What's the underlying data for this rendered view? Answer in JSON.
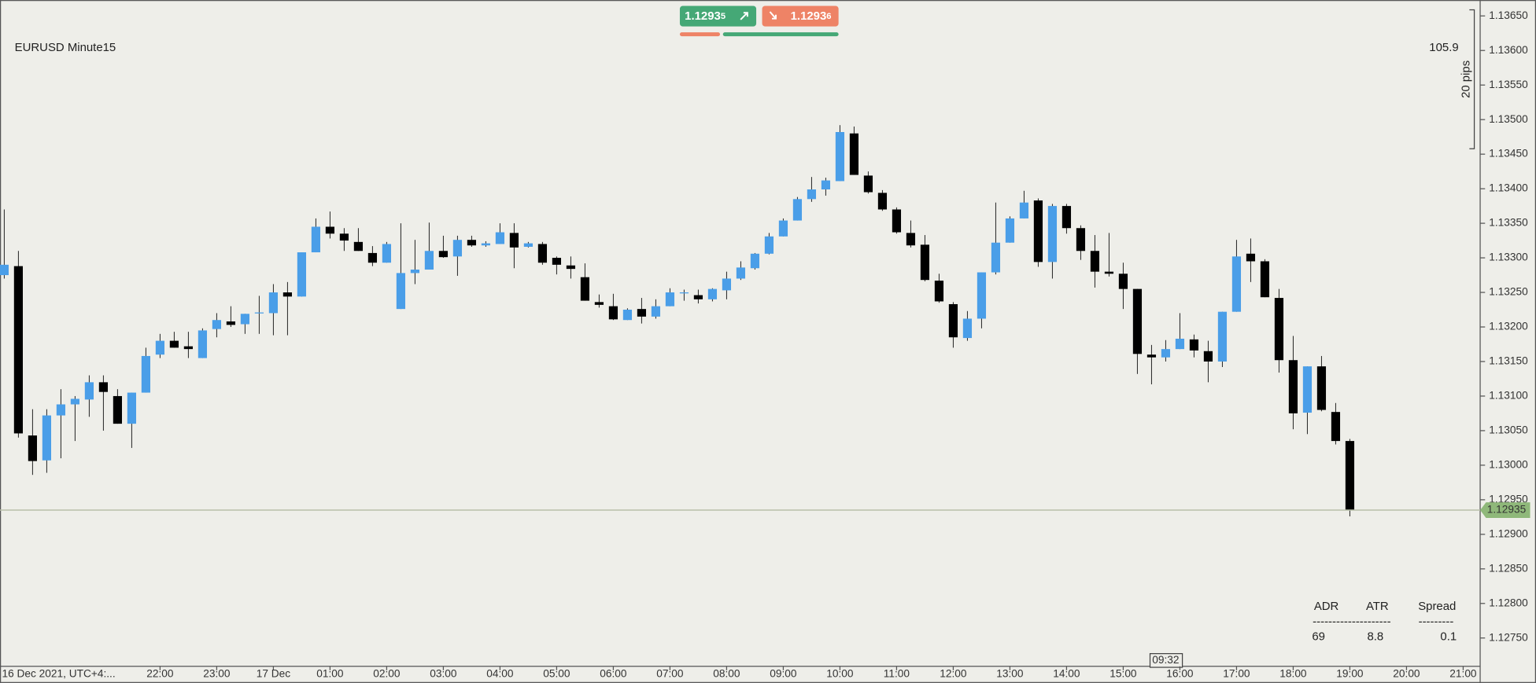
{
  "chart_data": {
    "type": "candlestick",
    "title": "EURUSD  Minute15",
    "up_color": "#4a9ee8",
    "down_color": "#000000",
    "x": [
      0,
      1,
      2,
      3,
      4,
      5,
      6,
      7,
      8,
      9,
      10,
      11,
      12,
      13,
      14,
      15,
      16,
      17,
      18,
      19,
      20,
      21,
      22,
      23,
      24,
      25,
      26,
      27,
      28,
      29,
      30,
      31,
      32,
      33,
      34,
      35,
      36,
      37,
      38,
      39,
      40,
      41,
      42,
      43,
      44,
      45,
      46,
      47,
      48,
      49,
      50,
      51,
      52,
      53,
      54,
      55,
      56,
      57,
      58,
      59,
      60,
      61,
      62,
      63,
      64,
      65,
      66,
      67,
      68,
      69,
      70,
      71,
      72,
      73,
      74,
      75,
      76,
      77,
      78,
      79,
      80,
      81,
      82,
      83,
      84,
      85,
      86,
      87,
      88,
      89,
      90,
      91,
      92,
      93,
      94,
      95
    ],
    "open": [
      1.13275,
      1.13288,
      1.13043,
      1.13007,
      1.13072,
      1.13088,
      1.13095,
      1.1312,
      1.131,
      1.1306,
      1.13105,
      1.1316,
      1.1318,
      1.13172,
      1.13155,
      1.13197,
      1.13208,
      1.13204,
      1.1322,
      1.1322,
      1.1325,
      1.13244,
      1.13308,
      1.13345,
      1.13335,
      1.13323,
      1.13307,
      1.13293,
      1.13226,
      1.13278,
      1.13283,
      1.1331,
      1.13302,
      1.13326,
      1.13318,
      1.1332,
      1.13336,
      1.13316,
      1.1332,
      1.133,
      1.13289,
      1.13272,
      1.13236,
      1.1323,
      1.1321,
      1.13226,
      1.13215,
      1.1323,
      1.13249,
      1.13246,
      1.1324,
      1.13253,
      1.1327,
      1.13285,
      1.13306,
      1.13331,
      1.13354,
      1.13385,
      1.13399,
      1.13411,
      1.1348,
      1.13419,
      1.13394,
      1.1337,
      1.13336,
      1.13319,
      1.13267,
      1.13233,
      1.13184,
      1.13212,
      1.13279,
      1.13322,
      1.13357,
      1.13383,
      1.13294,
      1.13375,
      1.13343,
      1.1331,
      1.1328,
      1.13277,
      1.13255,
      1.1316,
      1.13156,
      1.13168,
      1.13182,
      1.13165,
      1.1315,
      1.13222,
      1.13306,
      1.13295,
      1.13242,
      1.13152,
      1.13076,
      1.13143,
      1.13077,
      1.13035
    ],
    "high": [
      1.1337,
      1.1331,
      1.13081,
      1.13081,
      1.1311,
      1.131,
      1.1313,
      1.1313,
      1.1311,
      1.13105,
      1.1317,
      1.1319,
      1.13193,
      1.13193,
      1.13198,
      1.1322,
      1.1323,
      1.13219,
      1.13245,
      1.13262,
      1.13265,
      1.13308,
      1.13357,
      1.13367,
      1.13343,
      1.13343,
      1.13317,
      1.13323,
      1.1335,
      1.13326,
      1.13351,
      1.13332,
      1.13332,
      1.13332,
      1.13324,
      1.1335,
      1.1335,
      1.13323,
      1.13323,
      1.13302,
      1.13302,
      1.13292,
      1.13247,
      1.13248,
      1.13227,
      1.13242,
      1.1324,
      1.13256,
      1.13254,
      1.13254,
      1.13256,
      1.1328,
      1.13295,
      1.13307,
      1.13336,
      1.13357,
      1.13388,
      1.13417,
      1.13416,
      1.13492,
      1.1349,
      1.13425,
      1.13398,
      1.13373,
      1.13354,
      1.13333,
      1.13277,
      1.13236,
      1.13223,
      1.13279,
      1.1338,
      1.1336,
      1.13397,
      1.13386,
      1.13378,
      1.13378,
      1.13347,
      1.13333,
      1.13336,
      1.13293,
      1.13255,
      1.13174,
      1.13181,
      1.1322,
      1.13189,
      1.1318,
      1.13222,
      1.13326,
      1.13328,
      1.13298,
      1.13255,
      1.13187,
      1.13143,
      1.13158,
      1.1309,
      1.13038
    ],
    "low": [
      1.1327,
      1.1304,
      1.12986,
      1.12989,
      1.1301,
      1.13035,
      1.1307,
      1.1305,
      1.1306,
      1.13025,
      1.13105,
      1.13155,
      1.1317,
      1.13155,
      1.13155,
      1.13185,
      1.132,
      1.1319,
      1.1319,
      1.13188,
      1.13188,
      1.13244,
      1.13308,
      1.13328,
      1.1331,
      1.1331,
      1.13288,
      1.13293,
      1.13226,
      1.13262,
      1.13283,
      1.133,
      1.13274,
      1.13316,
      1.13316,
      1.1332,
      1.13285,
      1.13315,
      1.1329,
      1.13276,
      1.1327,
      1.13238,
      1.13228,
      1.1321,
      1.1321,
      1.13205,
      1.13212,
      1.1323,
      1.13238,
      1.13234,
      1.13237,
      1.1324,
      1.13268,
      1.13283,
      1.13305,
      1.13331,
      1.13354,
      1.13381,
      1.1339,
      1.13411,
      1.1342,
      1.13393,
      1.13368,
      1.13335,
      1.13315,
      1.13266,
      1.13235,
      1.1317,
      1.1318,
      1.13198,
      1.13276,
      1.13322,
      1.13357,
      1.13287,
      1.1327,
      1.13335,
      1.13297,
      1.13257,
      1.13273,
      1.13226,
      1.13132,
      1.13117,
      1.1315,
      1.13168,
      1.13156,
      1.1312,
      1.13142,
      1.13222,
      1.13265,
      1.13243,
      1.13134,
      1.13052,
      1.13045,
      1.13078,
      1.1303,
      1.12926
    ],
    "close": [
      1.1329,
      1.13046,
      1.13006,
      1.13072,
      1.13088,
      1.13096,
      1.1312,
      1.13106,
      1.1306,
      1.13105,
      1.13158,
      1.1318,
      1.1317,
      1.13168,
      1.13195,
      1.1321,
      1.13203,
      1.13219,
      1.13221,
      1.1325,
      1.13244,
      1.13308,
      1.13345,
      1.13335,
      1.13325,
      1.1331,
      1.13293,
      1.1332,
      1.13278,
      1.13283,
      1.1331,
      1.13301,
      1.13326,
      1.13318,
      1.13321,
      1.13337,
      1.13315,
      1.13321,
      1.13293,
      1.1329,
      1.13284,
      1.13238,
      1.13232,
      1.13211,
      1.13225,
      1.13215,
      1.1323,
      1.1325,
      1.1325,
      1.1324,
      1.13255,
      1.1327,
      1.13286,
      1.13306,
      1.13331,
      1.13354,
      1.13385,
      1.13399,
      1.13412,
      1.13482,
      1.1342,
      1.13395,
      1.1337,
      1.13337,
      1.13318,
      1.13268,
      1.13237,
      1.13185,
      1.13212,
      1.13279,
      1.13322,
      1.13357,
      1.1338,
      1.13294,
      1.13375,
      1.13343,
      1.1331,
      1.1328,
      1.13277,
      1.13255,
      1.13161,
      1.13156,
      1.13168,
      1.13183,
      1.13166,
      1.1315,
      1.13222,
      1.13302,
      1.13295,
      1.13243,
      1.13152,
      1.13075,
      1.13143,
      1.1308,
      1.13035,
      1.12935
    ],
    "xlim": [
      -0.3,
      104.2
    ],
    "xticks": [
      {
        "value": 11,
        "label": "22:00"
      },
      {
        "value": 15,
        "label": "23:00"
      },
      {
        "value": 19,
        "label": "17 Dec"
      },
      {
        "value": 23,
        "label": "01:00"
      },
      {
        "value": 27,
        "label": "02:00"
      },
      {
        "value": 31,
        "label": "03:00"
      },
      {
        "value": 35,
        "label": "04:00"
      },
      {
        "value": 39,
        "label": "05:00"
      },
      {
        "value": 43,
        "label": "06:00"
      },
      {
        "value": 47,
        "label": "07:00"
      },
      {
        "value": 51,
        "label": "08:00"
      },
      {
        "value": 55,
        "label": "09:00"
      },
      {
        "value": 59,
        "label": "10:00"
      },
      {
        "value": 63,
        "label": "11:00"
      },
      {
        "value": 67,
        "label": "12:00"
      },
      {
        "value": 71,
        "label": "13:00"
      },
      {
        "value": 75,
        "label": "14:00"
      },
      {
        "value": 79,
        "label": "15:00"
      },
      {
        "value": 83,
        "label": "16:00"
      },
      {
        "value": 87,
        "label": "17:00"
      },
      {
        "value": 91,
        "label": "18:00"
      },
      {
        "value": 95,
        "label": "19:00"
      },
      {
        "value": 99,
        "label": "20:00"
      },
      {
        "value": 103,
        "label": "21:00"
      }
    ],
    "x_origin_label": "16 Dec 2021, UTC+4:...",
    "cursor_time_label": "09:32",
    "ylim": [
      1.12709,
      1.13673
    ],
    "yticks": [
      {
        "value": 1.1275,
        "label": "1.12750"
      },
      {
        "value": 1.128,
        "label": "1.12800"
      },
      {
        "value": 1.1285,
        "label": "1.12850"
      },
      {
        "value": 1.129,
        "label": "1.12900"
      },
      {
        "value": 1.1295,
        "label": "1.12950"
      },
      {
        "value": 1.13,
        "label": "1.13000"
      },
      {
        "value": 1.1305,
        "label": "1.13050"
      },
      {
        "value": 1.131,
        "label": "1.13100"
      },
      {
        "value": 1.1315,
        "label": "1.13150"
      },
      {
        "value": 1.132,
        "label": "1.13200"
      },
      {
        "value": 1.1325,
        "label": "1.13250"
      },
      {
        "value": 1.133,
        "label": "1.13300"
      },
      {
        "value": 1.1335,
        "label": "1.13350"
      },
      {
        "value": 1.134,
        "label": "1.13400"
      },
      {
        "value": 1.1345,
        "label": "1.13450"
      },
      {
        "value": 1.135,
        "label": "1.13500"
      },
      {
        "value": 1.1355,
        "label": "1.13550"
      },
      {
        "value": 1.136,
        "label": "1.13600"
      },
      {
        "value": 1.1365,
        "label": "1.13650"
      }
    ],
    "current_price": {
      "value": 1.12935,
      "label": "1.12935"
    },
    "ruler": {
      "range_label": "20 pips",
      "value_label": "105.9"
    }
  },
  "trade_buttons": {
    "sell": {
      "price": "1.1293",
      "pipette": "5"
    },
    "buy": {
      "price": "1.1293",
      "pipette": "6"
    }
  },
  "stats": {
    "headers": [
      "ADR",
      "ATR",
      "Spread"
    ],
    "dividers": [
      "--------------------",
      "---------"
    ],
    "values": [
      "69",
      "8.8",
      "0.1"
    ]
  }
}
